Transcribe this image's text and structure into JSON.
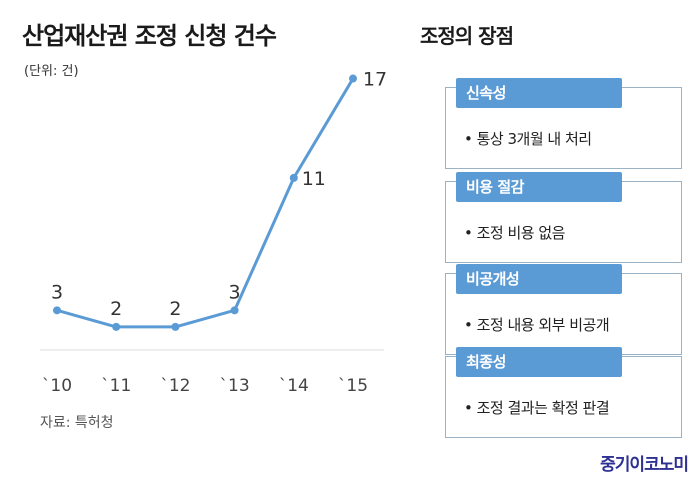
{
  "title": "산업재산권 조정 신청 건수",
  "unit": "(단위: 건)",
  "source": "자료: 특허청",
  "brand": "중기이코노미",
  "chart_data": {
    "type": "line",
    "categories": [
      "`10",
      "`11",
      "`12",
      "`13",
      "`14",
      "`15"
    ],
    "values": [
      3,
      2,
      2,
      3,
      11,
      17
    ],
    "data_labels": [
      "3",
      "2",
      "2",
      "3",
      "11",
      "17"
    ],
    "color": "#5b9bd5",
    "grid": false,
    "ylim": [
      0,
      18
    ]
  },
  "benefits": {
    "heading": "조정의 장점",
    "items": [
      {
        "label": "신속성",
        "text": "• 통상 3개월 내 처리"
      },
      {
        "label": "비용 절감",
        "text": "• 조정 비용 없음"
      },
      {
        "label": "비공개성",
        "text": "• 조정 내용 외부 비공개"
      },
      {
        "label": "최종성",
        "text": "• 조정 결과는 확정 판결"
      }
    ],
    "label_color": "#5b9bd5"
  }
}
